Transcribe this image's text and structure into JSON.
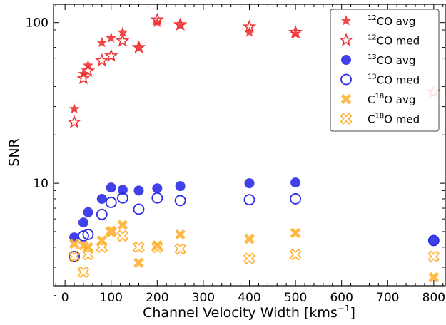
{
  "chart_data": {
    "type": "scatter",
    "xlabel": "Channel Velocity Width [kms",
    "xlabel_sup": "−1",
    "xlabel_end": "]",
    "ylabel": "SNR",
    "xlim": [
      -25,
      825
    ],
    "ylim": [
      2.3,
      130
    ],
    "yscale": "log",
    "x_ticks": [
      0,
      100,
      200,
      300,
      400,
      500,
      600,
      700,
      800
    ],
    "y_ticks": [
      10,
      100
    ],
    "legend_position": "top-right",
    "grid": false,
    "series": [
      {
        "name_sup": "12",
        "name_main": "CO avg",
        "style": "star-filled",
        "color": "#f03232",
        "x": [
          20,
          40,
          50,
          80,
          100,
          125,
          160,
          200,
          250,
          400,
          500
        ],
        "y": [
          29,
          48,
          54,
          75,
          80,
          87,
          70,
          100,
          96,
          87,
          85
        ]
      },
      {
        "name_sup": "12",
        "name_main": "CO med",
        "style": "star-open",
        "color": "#f03232",
        "x": [
          20,
          40,
          50,
          80,
          100,
          125,
          160,
          200,
          250,
          400,
          500,
          800
        ],
        "y": [
          24,
          45,
          50,
          58,
          62,
          77,
          70,
          104,
          97,
          94,
          87,
          37
        ]
      },
      {
        "name_sup": "13",
        "name_main": "CO avg",
        "style": "circle-filled",
        "color": "#2c2ce8",
        "x": [
          20,
          40,
          50,
          80,
          100,
          125,
          160,
          200,
          250,
          400,
          500,
          800
        ],
        "y": [
          4.6,
          5.7,
          6.6,
          8.0,
          9.4,
          9.1,
          9.0,
          9.3,
          9.6,
          10.0,
          10.1,
          4.4
        ]
      },
      {
        "name_sup": "13",
        "name_main": "CO med",
        "style": "circle-open",
        "color": "#2c2ce8",
        "x": [
          20,
          40,
          50,
          80,
          100,
          125,
          160,
          200,
          250,
          400,
          500,
          800
        ],
        "y": [
          3.5,
          4.7,
          4.8,
          6.4,
          7.6,
          8.1,
          6.9,
          8.1,
          7.8,
          7.9,
          8.0,
          4.4
        ]
      },
      {
        "name_main": "C",
        "name_sup": "18",
        "name_tail": "O avg",
        "style": "x-filled",
        "color": "#ffb133",
        "x": [
          20,
          40,
          50,
          80,
          100,
          125,
          160,
          200,
          250,
          400,
          500,
          800
        ],
        "y": [
          4.2,
          4.1,
          4.0,
          4.4,
          5.0,
          5.5,
          3.2,
          4.1,
          4.8,
          4.5,
          4.9,
          2.6
        ]
      },
      {
        "name_main": "C",
        "name_sup": "18",
        "name_tail": "O med",
        "style": "x-open",
        "color": "#ffb133",
        "x": [
          20,
          40,
          50,
          80,
          100,
          125,
          160,
          200,
          250,
          400,
          500,
          800
        ],
        "y": [
          3.5,
          2.8,
          3.6,
          4.0,
          5.0,
          4.7,
          4.0,
          4.0,
          3.9,
          3.4,
          3.6,
          3.5
        ]
      }
    ]
  }
}
